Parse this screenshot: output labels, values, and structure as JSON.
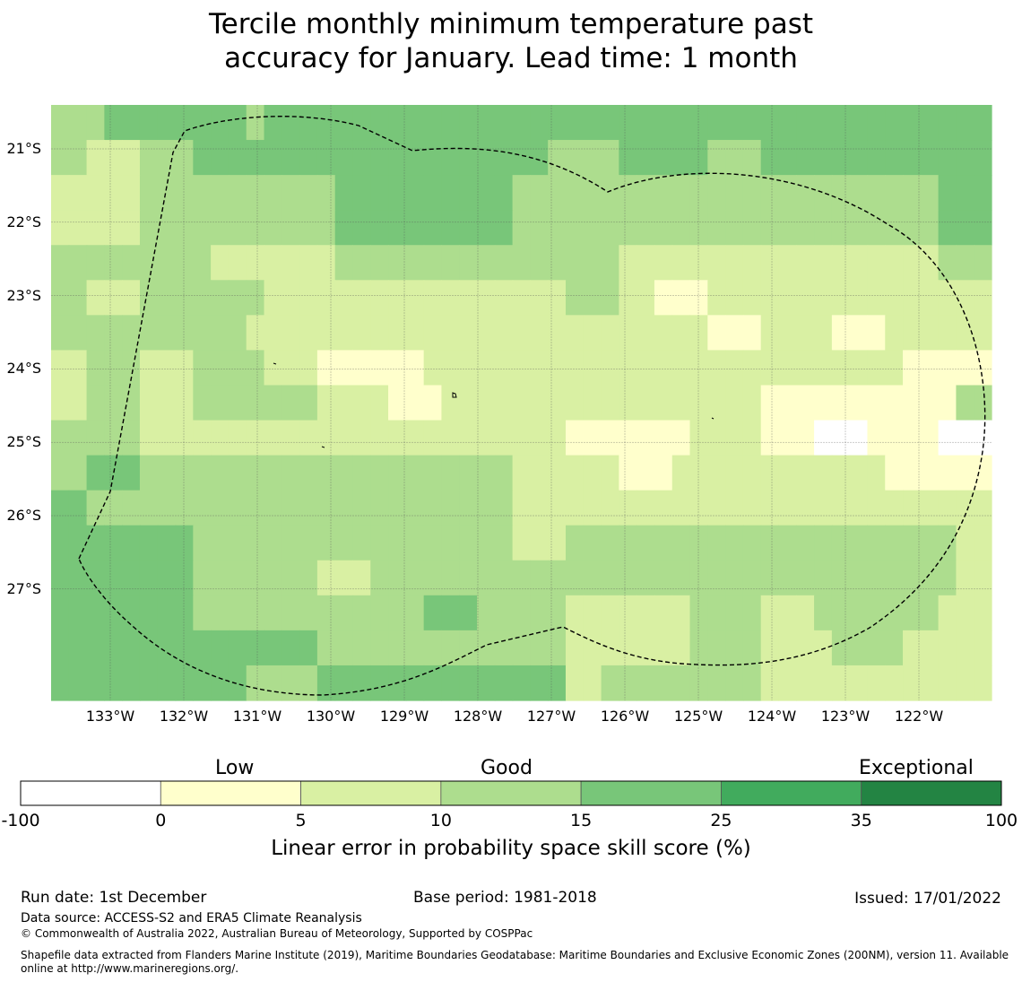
{
  "title": {
    "line1": "Tercile monthly minimum temperature past",
    "line2": "accuracy for January. Lead time: 1 month"
  },
  "map": {
    "lat_labels": [
      "21°S",
      "22°S",
      "23°S",
      "24°S",
      "25°S",
      "26°S",
      "27°S"
    ],
    "lon_labels": [
      "133°W",
      "132°W",
      "131°W",
      "130°W",
      "129°W",
      "128°W",
      "127°W",
      "126°W",
      "125°W",
      "124°W",
      "123°W",
      "122°W"
    ],
    "grid": [
      [
        3,
        3,
        3,
        4,
        4,
        4,
        4,
        4,
        4,
        4,
        4,
        3,
        4,
        4,
        4,
        4,
        4,
        4,
        4,
        4,
        4,
        4,
        4,
        4,
        4,
        4,
        4,
        4,
        4,
        4,
        4,
        4,
        4,
        4,
        4,
        4,
        4,
        4,
        4,
        4,
        4,
        4,
        4,
        4,
        4,
        4,
        4,
        4,
        4,
        4,
        4,
        4,
        4
      ],
      [
        3,
        3,
        2,
        2,
        2,
        3,
        3,
        3,
        4,
        4,
        4,
        4,
        4,
        4,
        4,
        4,
        4,
        4,
        4,
        4,
        4,
        4,
        4,
        4,
        4,
        4,
        4,
        4,
        3,
        3,
        3,
        3,
        4,
        4,
        4,
        4,
        4,
        3,
        3,
        3,
        4,
        4,
        4,
        4,
        4,
        4,
        4,
        4,
        4,
        4,
        4,
        4,
        4
      ],
      [
        2,
        2,
        2,
        2,
        2,
        3,
        3,
        3,
        3,
        3,
        3,
        3,
        3,
        3,
        3,
        3,
        4,
        4,
        4,
        4,
        4,
        4,
        4,
        4,
        4,
        4,
        3,
        3,
        3,
        3,
        3,
        3,
        3,
        3,
        3,
        3,
        3,
        3,
        3,
        3,
        3,
        3,
        3,
        3,
        3,
        3,
        3,
        3,
        3,
        3,
        4,
        4,
        4
      ],
      [
        2,
        2,
        2,
        2,
        2,
        3,
        3,
        3,
        3,
        3,
        3,
        3,
        3,
        3,
        3,
        3,
        4,
        4,
        4,
        4,
        4,
        4,
        4,
        4,
        4,
        4,
        3,
        3,
        3,
        3,
        3,
        3,
        3,
        3,
        3,
        3,
        3,
        3,
        3,
        3,
        3,
        3,
        3,
        3,
        3,
        3,
        3,
        3,
        3,
        3,
        4,
        4,
        4
      ],
      [
        3,
        3,
        3,
        3,
        3,
        3,
        3,
        3,
        3,
        2,
        2,
        2,
        2,
        2,
        2,
        2,
        3,
        3,
        3,
        3,
        3,
        3,
        3,
        3,
        3,
        3,
        3,
        3,
        3,
        3,
        3,
        3,
        2,
        2,
        2,
        2,
        2,
        2,
        2,
        2,
        2,
        2,
        2,
        2,
        2,
        2,
        2,
        2,
        2,
        2,
        3,
        3,
        3
      ],
      [
        3,
        3,
        2,
        2,
        2,
        3,
        3,
        3,
        3,
        3,
        3,
        3,
        2,
        2,
        2,
        2,
        2,
        2,
        2,
        2,
        2,
        2,
        2,
        2,
        2,
        2,
        2,
        2,
        2,
        3,
        3,
        3,
        2,
        2,
        1,
        1,
        1,
        2,
        2,
        2,
        2,
        2,
        2,
        2,
        2,
        2,
        2,
        2,
        2,
        2,
        2,
        2,
        2
      ],
      [
        3,
        3,
        3,
        3,
        3,
        3,
        3,
        3,
        3,
        3,
        3,
        2,
        2,
        2,
        2,
        2,
        2,
        2,
        2,
        2,
        2,
        2,
        2,
        2,
        2,
        2,
        2,
        2,
        2,
        2,
        2,
        2,
        2,
        2,
        2,
        2,
        2,
        1,
        1,
        1,
        2,
        2,
        2,
        2,
        1,
        1,
        1,
        2,
        2,
        2,
        2,
        2,
        2
      ],
      [
        2,
        2,
        3,
        3,
        3,
        2,
        2,
        2,
        3,
        3,
        3,
        3,
        2,
        2,
        2,
        1,
        1,
        1,
        1,
        1,
        1,
        2,
        2,
        2,
        2,
        2,
        2,
        2,
        2,
        2,
        2,
        2,
        2,
        2,
        2,
        2,
        2,
        2,
        2,
        2,
        2,
        2,
        2,
        2,
        2,
        2,
        2,
        2,
        1,
        1,
        1,
        1,
        1
      ],
      [
        2,
        2,
        3,
        3,
        3,
        2,
        2,
        2,
        3,
        3,
        3,
        3,
        3,
        3,
        3,
        2,
        2,
        2,
        2,
        1,
        1,
        1,
        2,
        2,
        2,
        2,
        2,
        2,
        2,
        2,
        2,
        2,
        2,
        2,
        2,
        2,
        2,
        2,
        2,
        2,
        1,
        1,
        1,
        1,
        1,
        1,
        1,
        1,
        1,
        1,
        1,
        3,
        3
      ],
      [
        3,
        3,
        3,
        3,
        3,
        2,
        2,
        2,
        2,
        2,
        2,
        2,
        2,
        2,
        2,
        2,
        2,
        2,
        2,
        2,
        2,
        2,
        2,
        2,
        2,
        2,
        2,
        2,
        2,
        1,
        1,
        1,
        1,
        1,
        1,
        1,
        2,
        2,
        2,
        2,
        1,
        1,
        1,
        0,
        0,
        0,
        1,
        1,
        1,
        1,
        0,
        0,
        0
      ],
      [
        3,
        3,
        4,
        4,
        4,
        3,
        3,
        3,
        3,
        3,
        3,
        3,
        3,
        3,
        3,
        3,
        3,
        3,
        3,
        3,
        3,
        3,
        3,
        3,
        3,
        3,
        2,
        2,
        2,
        2,
        2,
        2,
        1,
        1,
        1,
        2,
        2,
        2,
        2,
        2,
        2,
        2,
        2,
        2,
        2,
        2,
        2,
        1,
        1,
        1,
        1,
        1,
        1
      ],
      [
        4,
        4,
        3,
        3,
        3,
        3,
        3,
        3,
        3,
        3,
        3,
        3,
        3,
        3,
        3,
        3,
        3,
        3,
        3,
        3,
        3,
        3,
        3,
        3,
        3,
        3,
        2,
        2,
        2,
        2,
        2,
        2,
        2,
        2,
        2,
        2,
        2,
        2,
        2,
        2,
        2,
        2,
        2,
        2,
        2,
        2,
        2,
        2,
        2,
        2,
        2,
        2,
        2
      ],
      [
        4,
        4,
        4,
        4,
        4,
        4,
        4,
        4,
        3,
        3,
        3,
        3,
        3,
        3,
        3,
        3,
        3,
        3,
        3,
        3,
        3,
        3,
        3,
        3,
        3,
        3,
        2,
        2,
        2,
        3,
        3,
        3,
        3,
        3,
        3,
        3,
        3,
        3,
        3,
        3,
        3,
        3,
        3,
        3,
        3,
        3,
        3,
        3,
        3,
        3,
        3,
        2,
        2
      ],
      [
        4,
        4,
        4,
        4,
        4,
        4,
        4,
        4,
        3,
        3,
        3,
        3,
        3,
        3,
        3,
        2,
        2,
        2,
        3,
        3,
        3,
        3,
        3,
        3,
        3,
        3,
        3,
        3,
        3,
        3,
        3,
        3,
        3,
        3,
        3,
        3,
        3,
        3,
        3,
        3,
        3,
        3,
        3,
        3,
        3,
        3,
        3,
        3,
        3,
        3,
        3,
        2,
        2
      ],
      [
        4,
        4,
        4,
        4,
        4,
        4,
        4,
        4,
        3,
        3,
        3,
        3,
        3,
        3,
        3,
        3,
        3,
        3,
        3,
        3,
        3,
        4,
        4,
        4,
        3,
        3,
        3,
        3,
        3,
        2,
        2,
        2,
        2,
        2,
        2,
        2,
        3,
        3,
        3,
        3,
        2,
        2,
        2,
        3,
        3,
        3,
        3,
        3,
        3,
        3,
        2,
        2,
        2
      ],
      [
        4,
        4,
        4,
        4,
        4,
        4,
        4,
        4,
        4,
        4,
        4,
        4,
        4,
        4,
        4,
        3,
        3,
        3,
        3,
        3,
        3,
        3,
        3,
        3,
        3,
        3,
        3,
        3,
        3,
        2,
        2,
        2,
        2,
        2,
        2,
        2,
        3,
        3,
        3,
        3,
        2,
        2,
        2,
        2,
        3,
        3,
        3,
        3,
        2,
        2,
        2,
        2,
        2
      ],
      [
        4,
        4,
        4,
        4,
        4,
        4,
        4,
        4,
        4,
        4,
        4,
        3,
        3,
        3,
        3,
        4,
        4,
        4,
        4,
        4,
        4,
        4,
        4,
        4,
        4,
        4,
        4,
        4,
        4,
        2,
        2,
        3,
        3,
        3,
        3,
        3,
        3,
        3,
        3,
        3,
        2,
        2,
        2,
        2,
        2,
        2,
        2,
        2,
        2,
        2,
        2,
        2,
        2
      ]
    ],
    "level_colors": [
      "#ffffff",
      "#ffffcc",
      "#d9f0a3",
      "#addd8e",
      "#78c679",
      "#41ab5d",
      "#238443"
    ],
    "boundary": "EEZ outline (dashed)"
  },
  "legend": {
    "categories": [
      "Low",
      "Good",
      "Exceptional"
    ],
    "boundaries": [
      "-100",
      "0",
      "5",
      "10",
      "15",
      "25",
      "35",
      "100"
    ],
    "colors": [
      "#ffffff",
      "#ffffcc",
      "#d9f0a3",
      "#addd8e",
      "#78c679",
      "#41ab5d",
      "#238443"
    ],
    "title": "Linear error in probability space skill score (%)"
  },
  "footer": {
    "run_date": "Run date: 1st December",
    "base_period": "Base period: 1981-2018",
    "issued": "Issued: 17/01/2022",
    "data_source": "Data source: ACCESS-S2 and ERA5 Climate Reanalysis",
    "copyright": "© Commonwealth of Australia 2022, Australian Bureau of Meteorology, Supported by COSPPac",
    "shapefile_line1": "Shapefile data extracted from Flanders Marine Institute (2019), Maritime Boundaries Geodatabase: Maritime Boundaries and Exclusive Economic Zones (200NM), version 11. Available",
    "shapefile_line2": "online at http://www.marineregions.org/."
  }
}
